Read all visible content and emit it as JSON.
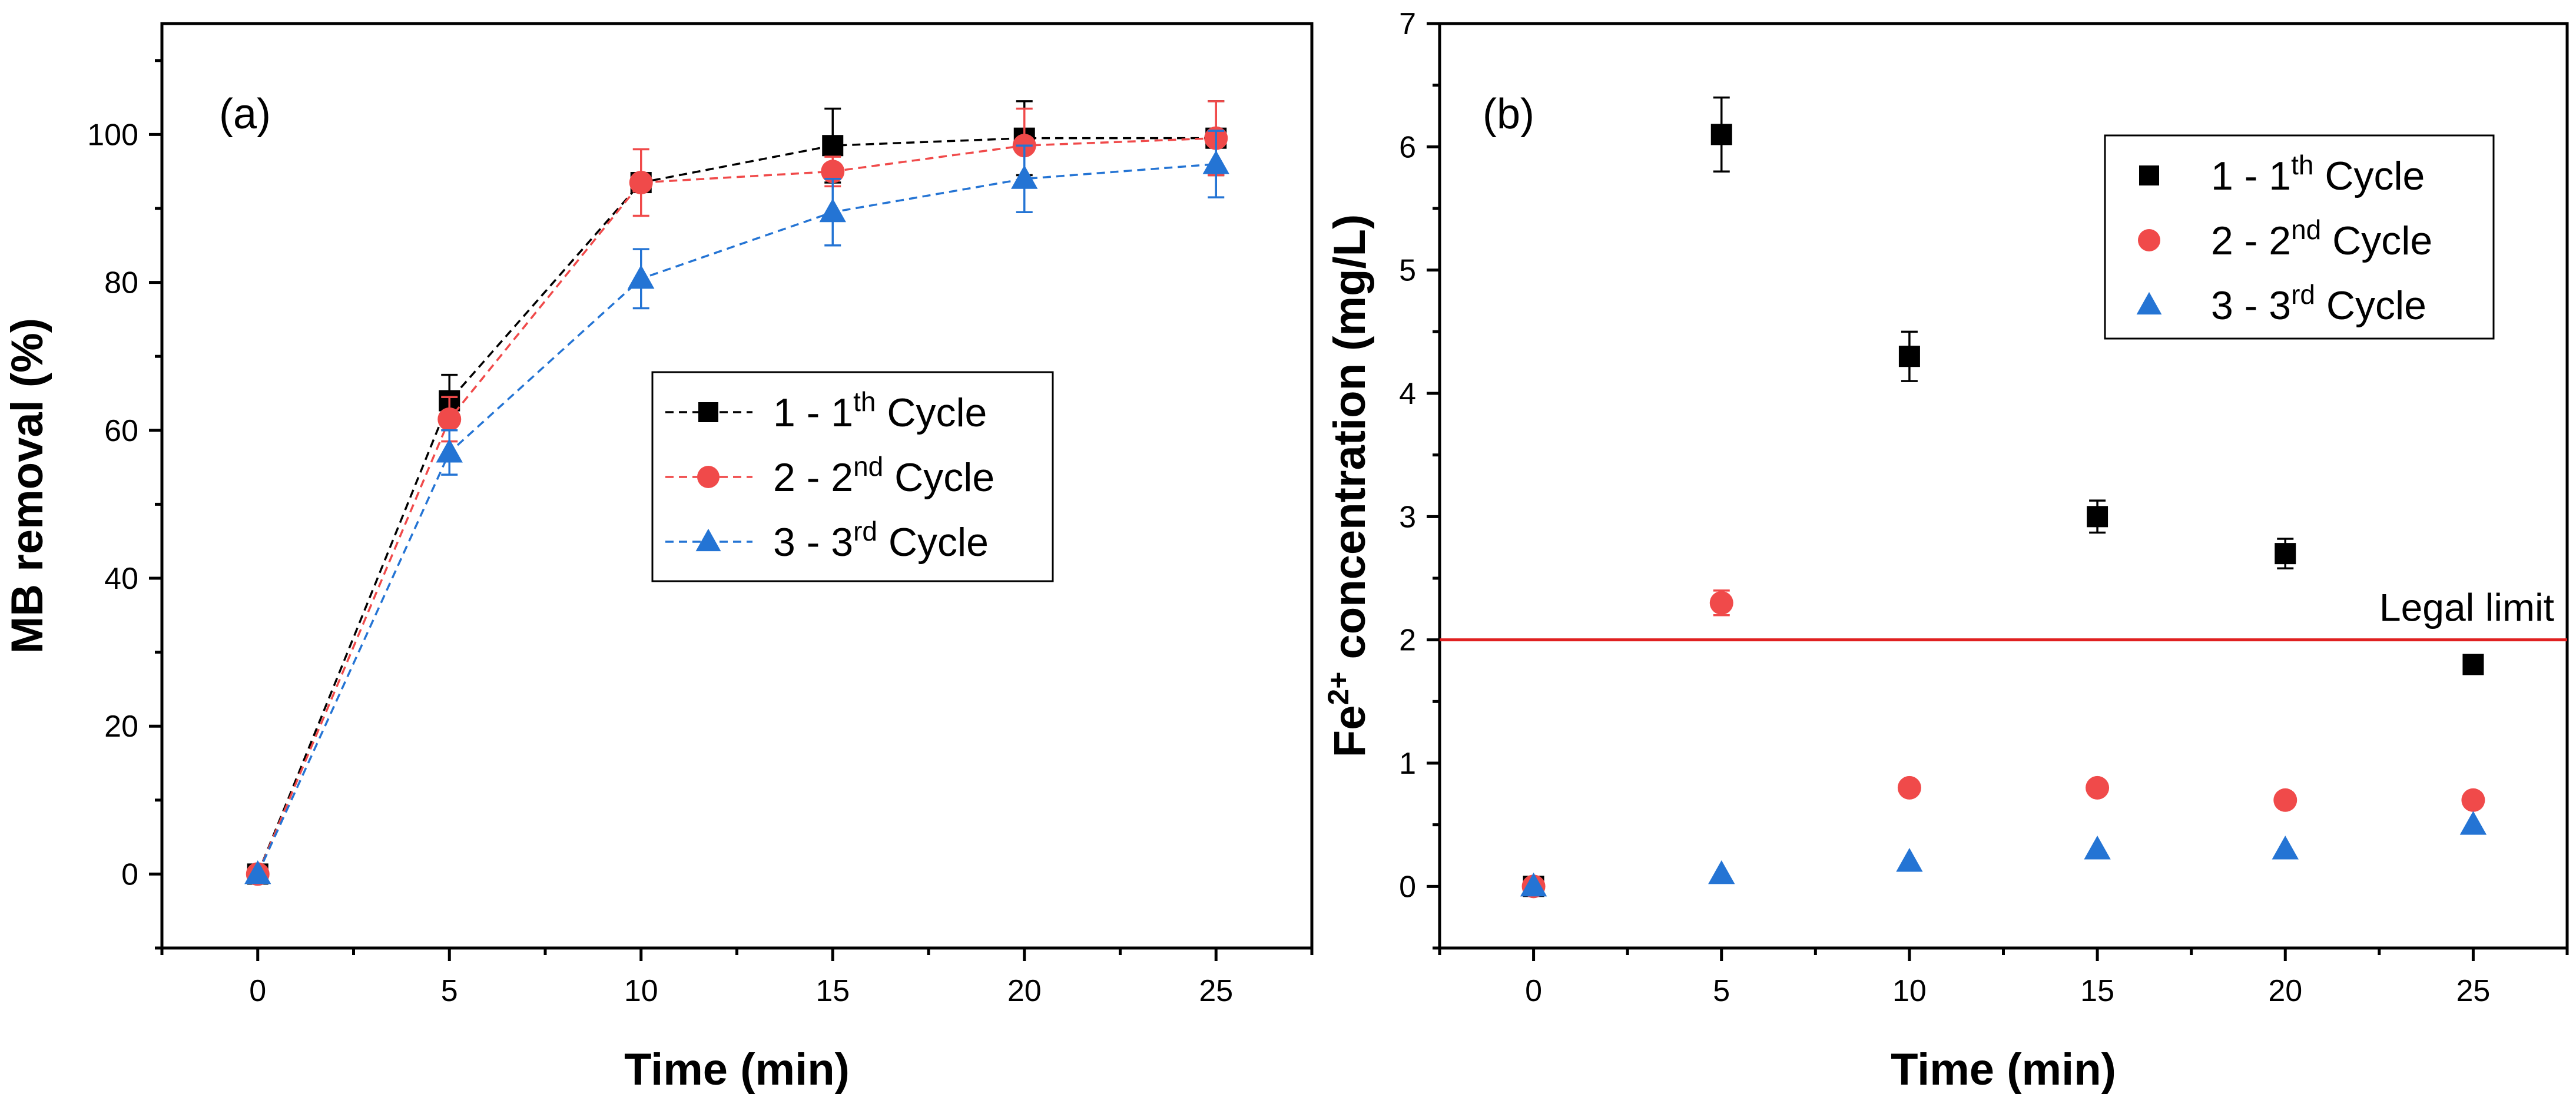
{
  "chart_data": [
    {
      "type": "line",
      "panel_label": "(a)",
      "xlabel": "Time (min)",
      "ylabel": "MB removal (%)",
      "xlim": [
        -2.5,
        27.5
      ],
      "ylim": [
        -10,
        115
      ],
      "xticks": [
        0,
        5,
        10,
        15,
        20,
        25
      ],
      "yticks": [
        0,
        20,
        40,
        60,
        80,
        100
      ],
      "legend_position": "center-right",
      "series": [
        {
          "name": "1 - 1th Cycle",
          "label_main": "1 - 1",
          "label_sup": "th",
          "label_tail": " Cycle",
          "color": "#000000",
          "marker": "square",
          "x": [
            0,
            5,
            10,
            15,
            20,
            25
          ],
          "y": [
            0,
            64,
            93.5,
            98.5,
            99.5,
            99.5
          ],
          "err": [
            0,
            3.5,
            1,
            5,
            5,
            5
          ]
        },
        {
          "name": "2 - 2nd Cycle",
          "label_main": "2 - 2",
          "label_sup": "nd",
          "label_tail": " Cycle",
          "color": "#f04a4a",
          "marker": "circle",
          "x": [
            0,
            5,
            10,
            15,
            20,
            25
          ],
          "y": [
            0,
            61.5,
            93.5,
            95,
            98.5,
            99.5
          ],
          "err": [
            0,
            3,
            4.5,
            2,
            5,
            5
          ]
        },
        {
          "name": "3 - 3rd Cycle",
          "label_main": "3 - 3",
          "label_sup": "rd",
          "label_tail": " Cycle",
          "color": "#2474d4",
          "marker": "triangle",
          "x": [
            0,
            5,
            10,
            15,
            20,
            25
          ],
          "y": [
            0,
            57,
            80.5,
            89.5,
            94,
            96
          ],
          "err": [
            0,
            3,
            4,
            4.5,
            4.5,
            4.5
          ]
        }
      ]
    },
    {
      "type": "scatter",
      "panel_label": "(b)",
      "xlabel": "Time (min)",
      "ylabel_main": "Fe",
      "ylabel_sup": "2+",
      "ylabel_tail": " concentration (mg/L)",
      "xlim": [
        -2.5,
        27.5
      ],
      "ylim": [
        -0.5,
        7
      ],
      "xticks": [
        0,
        5,
        10,
        15,
        20,
        25
      ],
      "yticks": [
        0,
        1,
        2,
        3,
        4,
        5,
        6,
        7
      ],
      "legend_position": "top-right",
      "reference_line": {
        "y": 2,
        "label": "Legal limit",
        "color": "#e02020"
      },
      "series": [
        {
          "name": "1 - 1th Cycle",
          "label_main": "1 - 1",
          "label_sup": "th",
          "label_tail": " Cycle",
          "color": "#000000",
          "marker": "square",
          "x": [
            0,
            5,
            10,
            15,
            20,
            25
          ],
          "y": [
            0,
            6.1,
            4.3,
            3.0,
            2.7,
            1.8
          ],
          "err": [
            0,
            0.3,
            0.2,
            0.13,
            0.12,
            0.06
          ]
        },
        {
          "name": "2 - 2nd Cycle",
          "label_main": "2 - 2",
          "label_sup": "nd",
          "label_tail": " Cycle",
          "color": "#f04a4a",
          "marker": "circle",
          "x": [
            0,
            5,
            10,
            15,
            20,
            25
          ],
          "y": [
            0,
            2.3,
            0.8,
            0.8,
            0.7,
            0.7
          ],
          "err": [
            0,
            0.1,
            0,
            0,
            0,
            0
          ]
        },
        {
          "name": "3 - 3rd Cycle",
          "label_main": "3 - 3",
          "label_sup": "rd",
          "label_tail": " Cycle",
          "color": "#2474d4",
          "marker": "triangle",
          "x": [
            0,
            5,
            10,
            15,
            20,
            25
          ],
          "y": [
            0,
            0.1,
            0.2,
            0.3,
            0.3,
            0.5
          ],
          "err": [
            0,
            0,
            0,
            0,
            0,
            0
          ]
        }
      ]
    }
  ]
}
